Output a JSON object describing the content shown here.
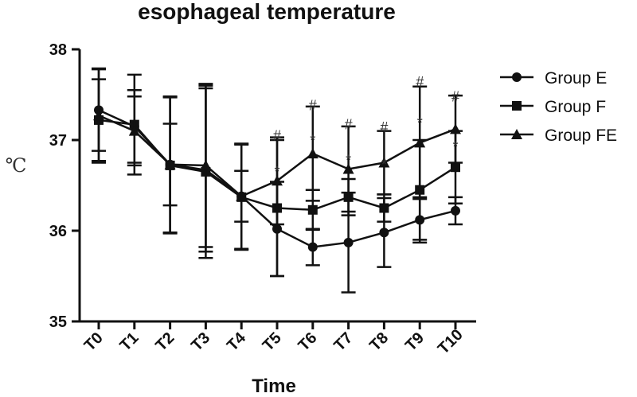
{
  "chart_data": {
    "type": "line",
    "title": "esophageal temperature",
    "xlabel": "Time",
    "ylabel": "℃",
    "categories": [
      "T0",
      "T1",
      "T2",
      "T3",
      "T4",
      "T5",
      "T6",
      "T7",
      "T8",
      "T9",
      "T10"
    ],
    "ylim": [
      35,
      38
    ],
    "yticks": [
      35,
      36,
      37,
      38
    ],
    "grid": false,
    "legend_position": "right",
    "series": [
      {
        "name": "Group E",
        "marker": "circle",
        "values": [
          37.33,
          37.15,
          36.73,
          36.67,
          36.38,
          36.02,
          35.82,
          35.87,
          35.98,
          36.12,
          36.22
        ],
        "errors": [
          0.45,
          0.4,
          0.45,
          0.9,
          0.58,
          0.52,
          0.2,
          0.55,
          0.38,
          0.25,
          0.15
        ]
      },
      {
        "name": "Group F",
        "marker": "square",
        "values": [
          37.22,
          37.17,
          36.72,
          36.65,
          36.37,
          36.25,
          36.23,
          36.37,
          36.25,
          36.45,
          36.7
        ],
        "errors": [
          0.45,
          0.55,
          0.75,
          0.95,
          0.58,
          0.75,
          0.22,
          0.2,
          0.15,
          0.55,
          0.4
        ]
      },
      {
        "name": "Group FE",
        "marker": "triangle",
        "values": [
          37.27,
          37.1,
          36.73,
          36.72,
          36.38,
          36.55,
          36.85,
          36.68,
          36.75,
          36.97,
          37.12
        ],
        "errors": [
          0.52,
          0.38,
          0.75,
          0.9,
          0.28,
          0.48,
          0.52,
          0.47,
          0.35,
          0.62,
          0.37
        ]
      }
    ],
    "annotations": [
      {
        "category": "T5",
        "y_star": 36.7,
        "y_hash": 37.05,
        "star": "*",
        "hash": "#"
      },
      {
        "category": "T6",
        "y_star": 37.05,
        "y_hash": 37.38,
        "star": "*",
        "hash": "#"
      },
      {
        "category": "T7",
        "y_star": 36.83,
        "y_hash": 37.17,
        "star": "*",
        "hash": "#"
      },
      {
        "category": "T8",
        "y_star": 36.78,
        "y_hash": 37.14,
        "star": "*",
        "hash": "#"
      },
      {
        "category": "T9",
        "y_star": 37.24,
        "y_hash": 37.64,
        "star": "*",
        "hash": "#"
      },
      {
        "category": "T10",
        "y_star": 36.98,
        "y_hash": 37.48,
        "star": "*",
        "hash": "#"
      }
    ]
  }
}
